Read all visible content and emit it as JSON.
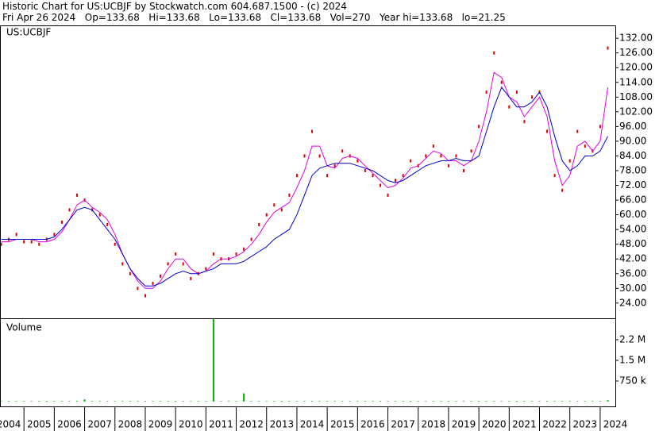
{
  "chart_data": {
    "type": "stock",
    "title": "Historic Chart for US:UCBJF by Stockwatch.com 604.687.1500 - (c) 2024",
    "subtitle": "Fri Apr 26 2024   Op=133.68   Hi=133.68   Lo=133.68   Cl=133.68   Vol=270   Year hi=133.68   lo=21.25",
    "symbol_label": "US:UCBJF",
    "x": [
      2004.25,
      2004.5,
      2004.75,
      2005,
      2005.25,
      2005.5,
      2005.75,
      2006,
      2006.25,
      2006.5,
      2006.75,
      2007,
      2007.25,
      2007.5,
      2007.75,
      2008,
      2008.25,
      2008.5,
      2008.75,
      2009,
      2009.25,
      2009.5,
      2009.75,
      2010,
      2010.25,
      2010.5,
      2010.75,
      2011,
      2011.25,
      2011.5,
      2011.75,
      2012,
      2012.25,
      2012.5,
      2012.75,
      2013,
      2013.25,
      2013.5,
      2013.75,
      2014,
      2014.25,
      2014.5,
      2014.75,
      2015,
      2015.25,
      2015.5,
      2015.75,
      2016,
      2016.25,
      2016.5,
      2016.75,
      2017,
      2017.25,
      2017.5,
      2017.75,
      2018,
      2018.25,
      2018.5,
      2018.75,
      2019,
      2019.25,
      2019.5,
      2019.75,
      2020,
      2020.25,
      2020.5,
      2020.75,
      2021,
      2021.25,
      2021.5,
      2021.75,
      2022,
      2022.25,
      2022.5,
      2022.75,
      2023,
      2023.25,
      2023.5,
      2023.75,
      2024,
      2024.25
    ],
    "series": [
      {
        "style": "dots",
        "color": "#dd0000",
        "values": [
          48,
          50,
          52,
          49,
          49,
          48,
          50,
          52,
          57,
          62,
          68,
          66,
          62,
          60,
          56,
          48,
          40,
          36,
          30,
          27,
          32,
          35,
          40,
          44,
          40,
          34,
          36,
          38,
          44,
          42,
          42,
          44,
          46,
          50,
          56,
          60,
          64,
          62,
          68,
          76,
          84,
          94,
          84,
          76,
          80,
          86,
          84,
          82,
          78,
          76,
          72,
          68,
          74,
          76,
          82,
          80,
          84,
          88,
          84,
          80,
          84,
          78,
          86,
          96,
          110,
          126,
          114,
          104,
          110,
          98,
          108,
          110,
          94,
          76,
          70,
          82,
          94,
          88,
          86,
          96,
          128
        ]
      },
      {
        "style": "line",
        "color": "#e000e0",
        "values": [
          49,
          49,
          50,
          50,
          50,
          49,
          49,
          50,
          53,
          58,
          64,
          66,
          63,
          61,
          58,
          52,
          44,
          38,
          33,
          30,
          30,
          33,
          38,
          42,
          42,
          38,
          36,
          37,
          40,
          42,
          42,
          43,
          45,
          48,
          52,
          57,
          61,
          63,
          65,
          71,
          78,
          88,
          88,
          80,
          79,
          83,
          84,
          83,
          80,
          77,
          74,
          71,
          72,
          75,
          79,
          80,
          83,
          86,
          85,
          82,
          82,
          80,
          82,
          90,
          102,
          118,
          116,
          108,
          106,
          100,
          104,
          108,
          100,
          82,
          72,
          76,
          88,
          90,
          86,
          90,
          112
        ]
      },
      {
        "style": "line",
        "color": "#0000cc",
        "values": [
          50,
          50,
          50,
          50,
          50,
          50,
          50,
          51,
          54,
          58,
          62,
          63,
          62,
          58,
          54,
          50,
          44,
          38,
          34,
          31,
          31,
          32,
          34,
          36,
          37,
          36,
          36,
          37,
          38,
          40,
          40,
          40,
          41,
          43,
          45,
          47,
          50,
          52,
          54,
          60,
          68,
          76,
          79,
          80,
          81,
          81,
          81,
          80,
          79,
          78,
          76,
          74,
          73,
          74,
          76,
          78,
          80,
          81,
          82,
          82,
          83,
          82,
          82,
          84,
          94,
          104,
          112,
          108,
          104,
          104,
          106,
          110,
          104,
          92,
          82,
          78,
          80,
          84,
          84,
          86,
          92
        ]
      }
    ],
    "xlim": [
      2004.21,
      2024.5
    ],
    "xticks": [
      2004,
      2005,
      2006,
      2007,
      2008,
      2009,
      2010,
      2011,
      2012,
      2013,
      2014,
      2015,
      2016,
      2017,
      2018,
      2019,
      2020,
      2021,
      2022,
      2023,
      2024
    ],
    "ylim": [
      17.8,
      136.9
    ],
    "yticks": [
      {
        "value": 24,
        "label": "24.00"
      },
      {
        "value": 30,
        "label": "30.00"
      },
      {
        "value": 36,
        "label": "36.00"
      },
      {
        "value": 42,
        "label": "42.00"
      },
      {
        "value": 48,
        "label": "48.00"
      },
      {
        "value": 54,
        "label": "54.00"
      },
      {
        "value": 60,
        "label": "60.00"
      },
      {
        "value": 66,
        "label": "66.00"
      },
      {
        "value": 72,
        "label": "72.00"
      },
      {
        "value": 78,
        "label": "78.00"
      },
      {
        "value": 84,
        "label": "84.00"
      },
      {
        "value": 90,
        "label": "90.00"
      },
      {
        "value": 96,
        "label": "96.00"
      },
      {
        "value": 102,
        "label": "102.00"
      },
      {
        "value": 108,
        "label": "108.00"
      },
      {
        "value": 114,
        "label": "114.00"
      },
      {
        "value": 120,
        "label": "120.00"
      },
      {
        "value": 126,
        "label": "126.00"
      },
      {
        "value": 132,
        "label": "132.00"
      }
    ],
    "grid": false,
    "volume": {
      "label": "Volume",
      "color": "#00b000",
      "values": [
        20000,
        20000,
        20000,
        20000,
        20000,
        20000,
        20000,
        20000,
        20000,
        20000,
        20000,
        80000,
        20000,
        20000,
        20000,
        20000,
        20000,
        20000,
        20000,
        20000,
        20000,
        20000,
        20000,
        20000,
        20000,
        20000,
        20000,
        20000,
        3000000,
        20000,
        20000,
        20000,
        300000,
        20000,
        20000,
        20000,
        20000,
        20000,
        20000,
        20000,
        20000,
        20000,
        20000,
        20000,
        20000,
        20000,
        20000,
        20000,
        20000,
        20000,
        20000,
        20000,
        20000,
        20000,
        20000,
        20000,
        20000,
        20000,
        20000,
        20000,
        20000,
        20000,
        20000,
        20000,
        20000,
        20000,
        20000,
        20000,
        20000,
        20000,
        20000,
        20000,
        20000,
        20000,
        20000,
        20000,
        20000,
        20000,
        20000,
        20000,
        50000
      ],
      "ylim": [
        0,
        3000000
      ],
      "yticks": [
        {
          "value": 750000,
          "label": "750 k"
        },
        {
          "value": 1500000,
          "label": "1.5 M"
        },
        {
          "value": 2250000,
          "label": "2.2 M"
        }
      ]
    }
  }
}
